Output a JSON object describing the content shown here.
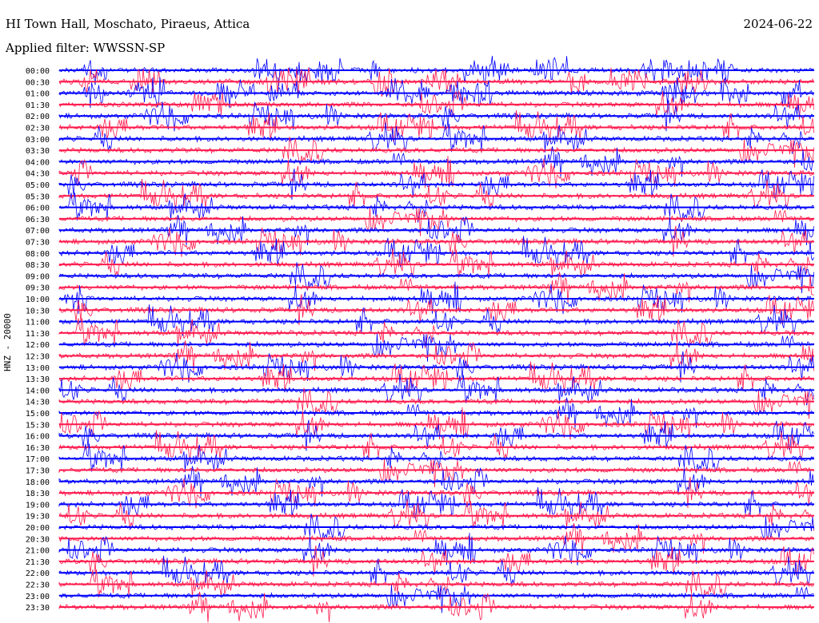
{
  "header": {
    "station": "HI Town Hall, Moschato, Piraeus, Attica",
    "filter": "Applied filter: WWSSN-SP",
    "date": "2024-06-22"
  },
  "chart_data": {
    "type": "line",
    "title": "HI Town Hall, Moschato, Piraeus, Attica",
    "subtitle": "Applied filter: WWSSN-SP",
    "date": "2024-06-22",
    "ylabel": "HNZ - 20000",
    "categories": [
      "00:00",
      "00:30",
      "01:00",
      "01:30",
      "02:00",
      "02:30",
      "03:00",
      "03:30",
      "04:00",
      "04:30",
      "05:00",
      "05:30",
      "06:00",
      "06:30",
      "07:00",
      "07:30",
      "08:00",
      "08:30",
      "09:00",
      "09:30",
      "10:00",
      "10:30",
      "11:00",
      "11:30",
      "12:00",
      "12:30",
      "13:00",
      "13:30",
      "14:00",
      "14:30",
      "15:00",
      "15:30",
      "16:00",
      "16:30",
      "17:00",
      "17:30",
      "18:00",
      "18:30",
      "19:00",
      "19:30",
      "20:00",
      "20:30",
      "21:00",
      "21:30",
      "22:00",
      "22:30",
      "23:00",
      "23:30"
    ],
    "colors": [
      "#0000ff",
      "#ff1a4d"
    ],
    "grid": false,
    "legend": "none"
  }
}
